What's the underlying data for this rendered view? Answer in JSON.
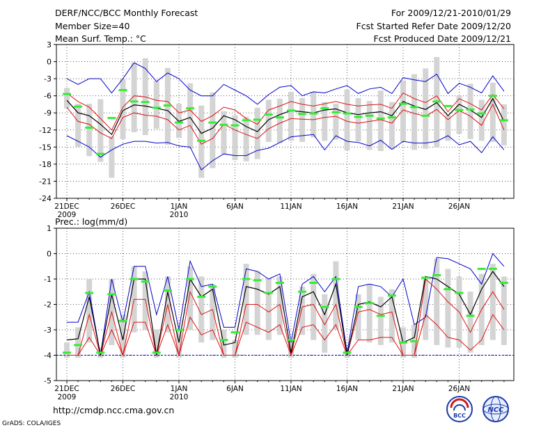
{
  "header": {
    "title": "DERF/NCC/BCC Monthly Forecast",
    "member_size": "Member Size=40",
    "variable": "Mean Surf. Temp.: °C",
    "period": "For 2009/12/21-2010/01/29",
    "refer_date": "Fcst Started Refer Date 2009/12/20",
    "produced_date": "Fcst Produced Date 2009/12/21"
  },
  "footer": {
    "url": "http://cmdp.ncc.cma.gov.cn",
    "credit": "GrADS: COLA/IGES",
    "logo_left": "BCC",
    "logo_right": "NCC"
  },
  "colors": {
    "upper": "#0000cc",
    "mean": "#000000",
    "spread": "#dd1111",
    "box": "#d4d4d4",
    "obs": "#33ee33",
    "grid": "#555555"
  },
  "chart_data": [
    {
      "type": "line",
      "title": "",
      "xlabel": "",
      "ylabel": "",
      "ylim": [
        -24,
        3
      ],
      "yticks": [
        "3",
        "0",
        "-3",
        "-6",
        "-9",
        "-12",
        "-15",
        "-18",
        "-21",
        "-24"
      ],
      "xticks": [
        {
          "label": "21DEC",
          "sub": "2009"
        },
        {
          "label": "26DEC",
          "sub": ""
        },
        {
          "label": "1JAN",
          "sub": "2010"
        },
        {
          "label": "6JAN",
          "sub": ""
        },
        {
          "label": "11JAN",
          "sub": ""
        },
        {
          "label": "16JAN",
          "sub": ""
        },
        {
          "label": "21JAN",
          "sub": ""
        },
        {
          "label": "26JAN",
          "sub": ""
        }
      ],
      "days": 40,
      "series": [
        {
          "name": "max",
          "values": [
            -3,
            -4,
            -3,
            -3,
            -5.5,
            -3,
            -0.2,
            -1.2,
            -3.5,
            -2,
            -3,
            -5,
            -6,
            -6,
            -4,
            -5,
            -6,
            -7.5,
            -5.8,
            -4.5,
            -4.2,
            -6,
            -5.3,
            -5.5,
            -4.8,
            -4.2,
            -5.6,
            -4.8,
            -4.5,
            -5.6,
            -2.8,
            -3.2,
            -3.5,
            -2.2,
            -5.6,
            -3.8,
            -4.5,
            -5.5,
            -2.5,
            -5.2
          ]
        },
        {
          "name": "upper",
          "values": [
            -5.5,
            -7,
            -8,
            -10,
            -12,
            -8,
            -6,
            -6.2,
            -6.8,
            -7,
            -9,
            -8.5,
            -10.5,
            -9.5,
            -8,
            -8.5,
            -10,
            -11,
            -8.5,
            -7.8,
            -7,
            -7.5,
            -7.8,
            -7.4,
            -7,
            -7.5,
            -7.8,
            -7.6,
            -7.5,
            -8.2,
            -5.5,
            -6.5,
            -7.2,
            -6,
            -8.8,
            -6.5,
            -7.4,
            -8.5,
            -5.8,
            -8.3
          ]
        },
        {
          "name": "mean",
          "values": [
            -6.8,
            -9,
            -9.5,
            -11,
            -12.8,
            -8.6,
            -7.6,
            -7.8,
            -8.2,
            -8.6,
            -10.5,
            -9.8,
            -12.6,
            -11.7,
            -9.5,
            -10.2,
            -11.4,
            -12.3,
            -10.2,
            -9.3,
            -8.6,
            -8.8,
            -9,
            -8.5,
            -8.3,
            -9,
            -9.3,
            -9,
            -8.8,
            -9.5,
            -7,
            -7.8,
            -8.4,
            -7.2,
            -9.5,
            -7.5,
            -8.5,
            -9.8,
            -6.5,
            -10.5
          ]
        },
        {
          "name": "lower",
          "values": [
            -8,
            -10.5,
            -11,
            -12.5,
            -13.5,
            -9.8,
            -9,
            -9.4,
            -9.6,
            -10.2,
            -12,
            -11.2,
            -14.5,
            -13.5,
            -11,
            -12,
            -12.8,
            -13.5,
            -11.8,
            -10.8,
            -10,
            -10.1,
            -10.2,
            -9.8,
            -9.6,
            -10.5,
            -10.8,
            -10.5,
            -10.2,
            -10.8,
            -8.5,
            -9.1,
            -9.6,
            -8.4,
            -10.2,
            -8.6,
            -9.6,
            -11.2,
            -7.5,
            -12
          ]
        },
        {
          "name": "min",
          "values": [
            -13,
            -14,
            -15,
            -16.8,
            -15.5,
            -14.5,
            -14,
            -14,
            -14.3,
            -14.2,
            -14.8,
            -15,
            -19,
            -17.4,
            -16.2,
            -16.5,
            -16.5,
            -15.6,
            -15.2,
            -14.2,
            -13.2,
            -13,
            -12.8,
            -15.5,
            -13,
            -14,
            -14.2,
            -14.8,
            -13.8,
            -15.4,
            -14,
            -14.3,
            -14.3,
            -14,
            -13,
            -14.6,
            -14,
            -16,
            -13.2,
            -15.5
          ]
        },
        {
          "name": "box_top",
          "values": [
            -4.6,
            -7.4,
            -7.4,
            -6.6,
            -13.1,
            -3.1,
            -0.2,
            0.6,
            -3.4,
            -1.1,
            -7.4,
            -3.8,
            -7.7,
            -5.4,
            -8.7,
            -9.4,
            -9.7,
            -8.1,
            -6.7,
            -6.5,
            -5.3,
            -6.4,
            -5.3,
            -7.1,
            -7.4,
            -4.9,
            -6.4,
            -6.9,
            -5.1,
            -7.1,
            -3.3,
            -2.2,
            -1.2,
            0.8,
            -9.4,
            -6,
            -3.9,
            -6.7,
            -3.7,
            -7.5
          ]
        },
        {
          "name": "box_bottom",
          "values": [
            -8.2,
            -15,
            -16.6,
            -17.6,
            -20.4,
            -13.6,
            -12.4,
            -12.9,
            -11.8,
            -14.6,
            -13.4,
            -15.3,
            -20.4,
            -18.7,
            -16.2,
            -17.3,
            -17.5,
            -17.1,
            -14.1,
            -14.3,
            -13.9,
            -14.1,
            -13.3,
            -13.9,
            -13.7,
            -15.6,
            -14,
            -15.5,
            -15.7,
            -15.4,
            -14.1,
            -15.5,
            -15.3,
            -15.1,
            -13.9,
            -12.7,
            -13.6,
            -13.9,
            -14.1,
            -14.7
          ]
        },
        {
          "name": "obs",
          "values": [
            -5.7,
            -7.9,
            -11.6,
            -16.2,
            -9.9,
            -5,
            -7,
            -7.1,
            -8.1,
            -7.7,
            -10.7,
            -8.2,
            -13.9,
            -10.7,
            -11.1,
            -11.2,
            -10.3,
            -10.2,
            -9.3,
            -9.8,
            -8.6,
            -9.2,
            -9.1,
            -8.2,
            -8.9,
            -9.1,
            -9.7,
            -9.5,
            -10,
            -9.8,
            -7.4,
            -8,
            -9.5,
            -7,
            -7.8,
            -8.5,
            -8.4,
            -9.1,
            -6,
            -10.3
          ]
        }
      ]
    },
    {
      "type": "line",
      "title": "Prec.: log(mm/d)",
      "xlabel": "",
      "ylabel": "",
      "ylim": [
        -5,
        1
      ],
      "yticks": [
        "1",
        "0",
        "-1",
        "-2",
        "-3",
        "-4",
        "-5"
      ],
      "xticks": [
        {
          "label": "21DEC",
          "sub": "2009"
        },
        {
          "label": "26DEC",
          "sub": ""
        },
        {
          "label": "1JAN",
          "sub": "2010"
        },
        {
          "label": "6JAN",
          "sub": ""
        },
        {
          "label": "11JAN",
          "sub": ""
        },
        {
          "label": "16JAN",
          "sub": ""
        },
        {
          "label": "21JAN",
          "sub": ""
        },
        {
          "label": "26JAN",
          "sub": ""
        }
      ],
      "days": 40,
      "series": [
        {
          "name": "max",
          "values": [
            -2.7,
            -2.7,
            -1.5,
            -4,
            -1,
            -2.7,
            -0.5,
            -0.5,
            -2.4,
            -0.9,
            -3,
            -0.3,
            -1.3,
            -1.2,
            -2.9,
            -2.9,
            -0.6,
            -0.7,
            -1,
            -0.8,
            -3.5,
            -1.2,
            -0.9,
            -1.5,
            -0.9,
            -3.9,
            -1.3,
            -1.2,
            -1.3,
            -1.7,
            -1,
            -2.8,
            -2.5,
            -0.15,
            -0.2,
            -0.4,
            -0.6,
            -1.2,
            0,
            -0.5
          ]
        },
        {
          "name": "mean",
          "values": [
            -3.4,
            -3.35,
            -1.7,
            -4,
            -1.6,
            -3.4,
            -1,
            -1,
            -4,
            -1.5,
            -3.5,
            -1,
            -1.7,
            -1.4,
            -3.6,
            -3.5,
            -1.3,
            -1.4,
            -1.6,
            -1.3,
            -3.9,
            -1.7,
            -1.5,
            -2.4,
            -1.2,
            -4,
            -2,
            -1.9,
            -2.1,
            -1.7,
            -3.5,
            -3.3,
            -0.9,
            -1,
            -1.3,
            -1.6,
            -2.4,
            -1.4,
            -0.7,
            -1.3
          ]
        },
        {
          "name": "upper",
          "values": [
            -4,
            -4,
            -2.4,
            -4,
            -2.3,
            -4,
            -1.8,
            -1.8,
            -4,
            -2,
            -4,
            -1.5,
            -2.4,
            -2.2,
            -4,
            -4,
            -2,
            -2,
            -2.3,
            -2,
            -4,
            -2.1,
            -2,
            -2.8,
            -2,
            -4,
            -2.3,
            -2.2,
            -2.4,
            -2.3,
            -4,
            -4,
            -1,
            -1.4,
            -1.9,
            -2.3,
            -3.1,
            -2.2,
            -1.5,
            -2.2
          ]
        },
        {
          "name": "lower",
          "values": [
            -4,
            -4,
            -3.3,
            -4,
            -3,
            -4,
            -2.7,
            -2.7,
            -4,
            -2.8,
            -4,
            -2.5,
            -3.2,
            -3,
            -4,
            -4,
            -2.7,
            -2.9,
            -3.1,
            -2.8,
            -4,
            -2.9,
            -2.8,
            -3.4,
            -2.8,
            -4,
            -3.4,
            -3.4,
            -3.3,
            -3.3,
            -4,
            -4,
            -2.4,
            -2.8,
            -3.3,
            -3.4,
            -3.8,
            -3.4,
            -2.4,
            -3
          ]
        },
        {
          "name": "box_top",
          "values": [
            -3.5,
            -2.9,
            -1,
            -3.7,
            -1,
            -2.4,
            -0.5,
            -0.7,
            -3,
            -0.9,
            -3,
            -0.5,
            -0.9,
            -1.2,
            -3,
            -3.4,
            -0.4,
            -0.7,
            -1,
            -0.9,
            -3.4,
            -1.3,
            -0.8,
            -1.6,
            -0.3,
            -3.8,
            -1.6,
            -1.2,
            -1.7,
            -1.4,
            -2.9,
            -2.8,
            -0.9,
            -0.2,
            -0.6,
            -0.9,
            -1.5,
            -0.8,
            -0.4,
            -0.9
          ]
        },
        {
          "name": "box_bottom",
          "values": [
            -4.1,
            -4.1,
            -3.5,
            -4.1,
            -3.6,
            -4.1,
            -3.1,
            -3,
            -4.1,
            -3.1,
            -4.1,
            -3,
            -3.5,
            -3.4,
            -4.1,
            -4.1,
            -3.2,
            -3.2,
            -3.4,
            -3.2,
            -4.1,
            -3.2,
            -3.4,
            -3.9,
            -3,
            -4.1,
            -3.4,
            -3.5,
            -3.6,
            -3.5,
            -4.1,
            -4.1,
            -3.4,
            -3.6,
            -3.7,
            -3.7,
            -3.9,
            -3.6,
            -3.4,
            -3.6
          ]
        },
        {
          "name": "obs",
          "values": [
            -3.9,
            -3.6,
            -1.55,
            -3.9,
            -1.6,
            -2.65,
            -1,
            -1.1,
            -3.9,
            -1.45,
            -3,
            -1,
            -1.7,
            -1.3,
            -3.4,
            -3.1,
            -1,
            -1.05,
            -1.55,
            -1.15,
            -3.4,
            -1.5,
            -1.15,
            -2.1,
            -1,
            -3.9,
            -2.1,
            -1.95,
            -2.45,
            -1.65,
            -3.5,
            -3.45,
            -0.95,
            -0.85,
            -1.4,
            -1.55,
            -2.45,
            -0.6,
            -0.6,
            -1.15
          ]
        }
      ]
    }
  ]
}
